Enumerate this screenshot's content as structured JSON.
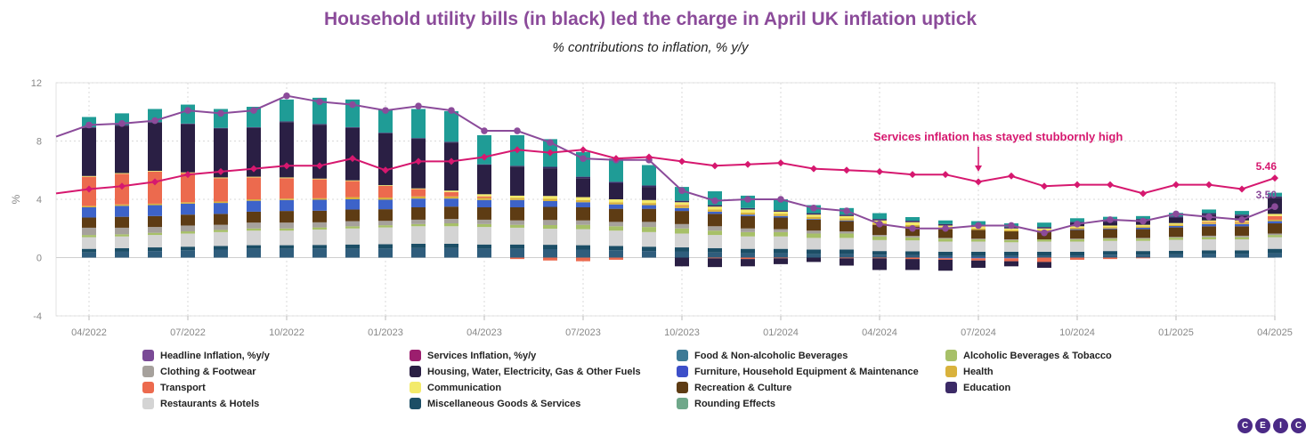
{
  "title": "Household utility bills (in black) led the charge in April UK inflation uptick",
  "subtitle": "% contributions to inflation, % y/y",
  "colors": {
    "title": "#8b4b9a",
    "headline_line": "#8b4b9a",
    "services_line": "#d6186f",
    "annotation": "#d6186f",
    "grid": "#d9d9d9",
    "axis_text": "#888888"
  },
  "logo": [
    "C",
    "E",
    "I",
    "C"
  ],
  "chart_data": {
    "type": "bar",
    "stacked": true,
    "title": "Household utility bills (in black) led the charge in April UK inflation uptick",
    "subtitle": "% contributions to inflation, % y/y",
    "ylabel": "%",
    "xlabel": "",
    "ylim": [
      -4,
      12
    ],
    "yticks": [
      -4,
      0,
      4,
      8,
      12
    ],
    "x_tick_labels": [
      "04/2022",
      "07/2022",
      "10/2022",
      "01/2023",
      "04/2023",
      "07/2023",
      "10/2023",
      "01/2024",
      "04/2024",
      "07/2024",
      "10/2024",
      "01/2025",
      "04/2025"
    ],
    "grid": true,
    "legend_position": "bottom",
    "categories": [
      "2022-03",
      "2022-04",
      "2022-05",
      "2022-06",
      "2022-07",
      "2022-08",
      "2022-09",
      "2022-10",
      "2022-11",
      "2022-12",
      "2023-01",
      "2023-02",
      "2023-03",
      "2023-04",
      "2023-05",
      "2023-06",
      "2023-07",
      "2023-08",
      "2023-09",
      "2023-10",
      "2023-11",
      "2023-12",
      "2024-01",
      "2024-02",
      "2024-03",
      "2024-04",
      "2024-05",
      "2024-06",
      "2024-07",
      "2024-08",
      "2024-09",
      "2024-10",
      "2024-11",
      "2024-12",
      "2025-01",
      "2025-02",
      "2025-03",
      "2025-04"
    ],
    "series": [
      {
        "name": "Food & Non-alcoholic Beverages",
        "kind": "bar",
        "color": "#2f5d7c",
        "values": [
          null,
          0.35,
          0.4,
          0.45,
          0.5,
          0.55,
          0.6,
          0.6,
          0.62,
          0.6,
          0.62,
          0.65,
          0.65,
          0.6,
          0.6,
          0.58,
          0.55,
          0.5,
          0.45,
          0.4,
          0.35,
          0.3,
          0.3,
          0.25,
          0.25,
          0.2,
          0.18,
          0.15,
          0.15,
          0.15,
          0.15,
          0.15,
          0.2,
          0.2,
          0.22,
          0.25,
          0.25,
          0.3
        ]
      },
      {
        "name": "Miscellaneous Goods & Services",
        "kind": "bar",
        "color": "#1c4e66",
        "values": [
          null,
          0.25,
          0.25,
          0.25,
          0.25,
          0.25,
          0.25,
          0.25,
          0.25,
          0.3,
          0.3,
          0.3,
          0.3,
          0.3,
          0.3,
          0.3,
          0.3,
          0.3,
          0.3,
          0.3,
          0.3,
          0.3,
          0.3,
          0.3,
          0.3,
          0.25,
          0.25,
          0.25,
          0.25,
          0.25,
          0.25,
          0.25,
          0.25,
          0.25,
          0.25,
          0.25,
          0.25,
          0.3
        ]
      },
      {
        "name": "Restaurants & Hotels",
        "kind": "bar",
        "color": "#d4d4d4",
        "values": [
          null,
          0.8,
          0.8,
          0.85,
          0.9,
          0.95,
          1.0,
          1.0,
          1.05,
          1.1,
          1.15,
          1.2,
          1.2,
          1.2,
          1.15,
          1.1,
          1.1,
          1.05,
          1.0,
          0.95,
          0.9,
          0.85,
          0.85,
          0.8,
          0.8,
          0.75,
          0.75,
          0.7,
          0.7,
          0.65,
          0.7,
          0.7,
          0.7,
          0.7,
          0.75,
          0.75,
          0.75,
          0.8
        ]
      },
      {
        "name": "Alcoholic Beverages & Tobacco",
        "kind": "bar",
        "color": "#a7c068",
        "values": [
          null,
          0.15,
          0.15,
          0.15,
          0.15,
          0.15,
          0.15,
          0.15,
          0.15,
          0.15,
          0.15,
          0.15,
          0.2,
          0.2,
          0.2,
          0.25,
          0.3,
          0.3,
          0.35,
          0.35,
          0.3,
          0.3,
          0.3,
          0.3,
          0.3,
          0.25,
          0.2,
          0.2,
          0.15,
          0.15,
          0.15,
          0.15,
          0.15,
          0.15,
          0.15,
          0.15,
          0.15,
          0.15
        ]
      },
      {
        "name": "Clothing & Footwear",
        "kind": "bar",
        "color": "#a6a19c",
        "values": [
          null,
          0.5,
          0.45,
          0.4,
          0.4,
          0.35,
          0.4,
          0.4,
          0.35,
          0.35,
          0.3,
          0.3,
          0.3,
          0.3,
          0.3,
          0.35,
          0.3,
          0.3,
          0.35,
          0.3,
          0.3,
          0.25,
          0.2,
          0.2,
          0.15,
          0.1,
          0.1,
          0.05,
          0.05,
          0.05,
          0.0,
          0.05,
          0.05,
          0.05,
          0.05,
          0.1,
          0.1,
          0.1
        ]
      },
      {
        "name": "Recreation & Culture",
        "kind": "bar",
        "color": "#5e3c14",
        "values": [
          null,
          0.7,
          0.75,
          0.75,
          0.75,
          0.75,
          0.75,
          0.8,
          0.8,
          0.8,
          0.8,
          0.85,
          0.85,
          0.85,
          0.9,
          0.9,
          0.9,
          0.9,
          0.9,
          0.9,
          0.85,
          0.85,
          0.8,
          0.75,
          0.7,
          0.7,
          0.65,
          0.6,
          0.6,
          0.55,
          0.55,
          0.6,
          0.6,
          0.6,
          0.65,
          0.65,
          0.65,
          0.7
        ]
      },
      {
        "name": "Furniture, Household Equipment & Maintenance",
        "kind": "bar",
        "color": "#3d63c9",
        "values": [
          null,
          0.7,
          0.75,
          0.75,
          0.75,
          0.75,
          0.75,
          0.75,
          0.75,
          0.7,
          0.65,
          0.6,
          0.55,
          0.5,
          0.5,
          0.4,
          0.35,
          0.3,
          0.25,
          0.2,
          0.15,
          0.1,
          0.1,
          0.05,
          0.05,
          0.0,
          0.0,
          -0.05,
          -0.05,
          -0.05,
          0.0,
          0.05,
          0.05,
          0.1,
          0.1,
          0.15,
          0.15,
          0.15
        ]
      },
      {
        "name": "Health",
        "kind": "bar",
        "color": "#d9b23c",
        "values": [
          null,
          0.1,
          0.1,
          0.1,
          0.1,
          0.1,
          0.1,
          0.1,
          0.1,
          0.15,
          0.15,
          0.15,
          0.15,
          0.15,
          0.15,
          0.15,
          0.15,
          0.15,
          0.15,
          0.15,
          0.15,
          0.15,
          0.15,
          0.15,
          0.15,
          0.1,
          0.1,
          0.1,
          0.1,
          0.1,
          0.1,
          0.1,
          0.1,
          0.1,
          0.1,
          0.1,
          0.1,
          0.1
        ]
      },
      {
        "name": "Transport",
        "kind": "bar",
        "color": "#ec6a4e",
        "values": [
          null,
          2.0,
          2.1,
          2.2,
          2.0,
          1.6,
          1.5,
          1.4,
          1.3,
          1.1,
          0.8,
          0.5,
          0.3,
          0.1,
          -0.1,
          -0.2,
          -0.25,
          -0.15,
          0.0,
          0.05,
          -0.05,
          -0.1,
          -0.05,
          0.0,
          -0.05,
          -0.05,
          -0.1,
          -0.1,
          -0.15,
          -0.2,
          -0.3,
          -0.15,
          -0.1,
          -0.05,
          0.0,
          0.05,
          0.05,
          0.25
        ]
      },
      {
        "name": "Communication",
        "kind": "bar",
        "color": "#f3ea6a",
        "values": [
          null,
          0.05,
          0.05,
          0.05,
          0.05,
          0.05,
          0.05,
          0.05,
          0.05,
          0.05,
          0.05,
          0.05,
          0.1,
          0.15,
          0.15,
          0.2,
          0.2,
          0.2,
          0.2,
          0.2,
          0.2,
          0.2,
          0.15,
          0.15,
          0.15,
          0.2,
          0.2,
          0.15,
          0.15,
          0.1,
          0.1,
          0.1,
          0.1,
          0.1,
          0.1,
          0.1,
          0.1,
          0.15
        ]
      },
      {
        "name": "Housing, Water, Electricity, Gas & Other Fuels",
        "kind": "bar",
        "color": "#2a1f44",
        "values": [
          null,
          3.3,
          3.25,
          3.3,
          3.3,
          3.35,
          3.35,
          3.8,
          3.7,
          3.6,
          3.55,
          3.4,
          3.3,
          2.0,
          2.0,
          1.9,
          1.3,
          1.1,
          0.9,
          -0.6,
          -0.6,
          -0.5,
          -0.4,
          -0.3,
          -0.5,
          -0.8,
          -0.75,
          -0.75,
          -0.5,
          -0.35,
          -0.4,
          0.2,
          0.25,
          0.3,
          0.35,
          0.4,
          0.3,
          1.1
        ]
      },
      {
        "name": "Education",
        "kind": "bar",
        "color": "#3b2a66",
        "values": [
          null,
          0.05,
          0.05,
          0.05,
          0.05,
          0.05,
          0.05,
          0.05,
          0.05,
          0.05,
          0.05,
          0.05,
          0.05,
          0.05,
          0.05,
          0.1,
          0.1,
          0.1,
          0.1,
          0.1,
          0.1,
          0.1,
          0.1,
          0.1,
          0.1,
          0.1,
          0.1,
          0.1,
          0.1,
          0.1,
          0.1,
          0.1,
          0.1,
          0.1,
          0.1,
          0.1,
          0.1,
          0.1
        ]
      },
      {
        "name": "Rounding Effects",
        "kind": "bar",
        "color": "#1f9c96",
        "values": [
          null,
          0.7,
          0.8,
          0.9,
          1.3,
          1.3,
          1.4,
          1.5,
          1.8,
          1.9,
          1.6,
          2.0,
          2.1,
          2.0,
          2.1,
          1.9,
          1.7,
          1.6,
          1.4,
          0.95,
          0.95,
          0.85,
          0.75,
          0.55,
          0.45,
          0.4,
          0.25,
          0.25,
          0.25,
          0.25,
          0.3,
          0.25,
          0.25,
          0.2,
          0.25,
          0.25,
          0.25,
          0.25
        ]
      },
      {
        "name": "Headline Inflation, %y/y",
        "kind": "line",
        "color": "#8b4b9a",
        "values": [
          8.3,
          9.1,
          9.2,
          9.4,
          10.1,
          9.9,
          10.1,
          11.1,
          10.7,
          10.5,
          10.1,
          10.4,
          10.1,
          8.7,
          8.7,
          7.9,
          6.8,
          6.7,
          6.7,
          4.6,
          3.9,
          4.0,
          4.0,
          3.4,
          3.2,
          2.3,
          2.0,
          2.0,
          2.2,
          2.2,
          1.7,
          2.3,
          2.6,
          2.5,
          3.0,
          2.8,
          2.6,
          3.5
        ]
      },
      {
        "name": "Services Inflation, %y/y",
        "kind": "line",
        "color": "#d6186f",
        "values": [
          4.4,
          4.7,
          4.9,
          5.2,
          5.7,
          5.9,
          6.1,
          6.3,
          6.3,
          6.8,
          6.0,
          6.6,
          6.6,
          6.9,
          7.4,
          7.2,
          7.4,
          6.8,
          6.9,
          6.6,
          6.3,
          6.4,
          6.5,
          6.1,
          6.0,
          5.9,
          5.7,
          5.7,
          5.2,
          5.6,
          4.9,
          5.0,
          5.0,
          4.4,
          5.0,
          5.0,
          4.7,
          5.46
        ]
      }
    ],
    "annotations": [
      {
        "text": "Services inflation has stayed stubbornly high",
        "target_category": "2024-07",
        "color": "#d6186f"
      },
      {
        "text": "5.46",
        "series": "Services Inflation, %y/y",
        "target_category": "2025-04"
      },
      {
        "text": "3.50",
        "series": "Headline Inflation, %y/y",
        "target_category": "2025-04"
      }
    ]
  },
  "legend": [
    {
      "label": "Headline Inflation, %y/y",
      "color": "#7a4a96"
    },
    {
      "label": "Services Inflation, %y/y",
      "color": "#9c1e6e"
    },
    {
      "label": "Food & Non-alcoholic Beverages",
      "color": "#3d7a96"
    },
    {
      "label": "Alcoholic Beverages & Tobacco",
      "color": "#a7c068"
    },
    {
      "label": "Clothing & Footwear",
      "color": "#a6a19c"
    },
    {
      "label": "Housing, Water, Electricity, Gas & Other Fuels",
      "color": "#2a1f44"
    },
    {
      "label": "Furniture, Household Equipment & Maintenance",
      "color": "#3d4fc9"
    },
    {
      "label": "Health",
      "color": "#d9b23c"
    },
    {
      "label": "Transport",
      "color": "#ec6a4e"
    },
    {
      "label": "Communication",
      "color": "#f3ea6a"
    },
    {
      "label": "Recreation & Culture",
      "color": "#5e3c14"
    },
    {
      "label": "Education",
      "color": "#3b2a66"
    },
    {
      "label": "Restaurants & Hotels",
      "color": "#d4d4d4"
    },
    {
      "label": "Miscellaneous Goods & Services",
      "color": "#1c4e66"
    },
    {
      "label": "Rounding Effects",
      "color": "#6fa88a"
    }
  ]
}
